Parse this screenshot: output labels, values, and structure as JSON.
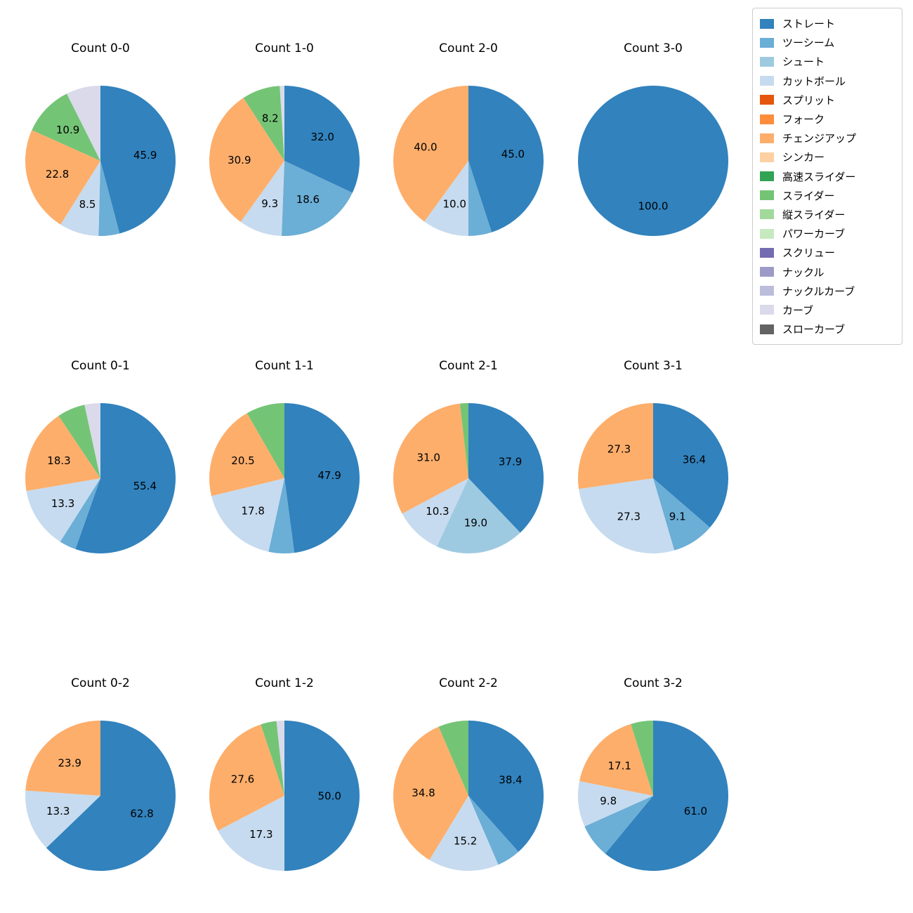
{
  "figure": {
    "background": "#ffffff"
  },
  "legend": {
    "items": [
      {
        "label": "ストレート",
        "color": "#3182bd"
      },
      {
        "label": "ツーシーム",
        "color": "#6baed6"
      },
      {
        "label": "シュート",
        "color": "#9ecae1"
      },
      {
        "label": "カットボール",
        "color": "#c6dbef"
      },
      {
        "label": "スプリット",
        "color": "#e6550d"
      },
      {
        "label": "フォーク",
        "color": "#fd8d3c"
      },
      {
        "label": "チェンジアップ",
        "color": "#fdae6b"
      },
      {
        "label": "シンカー",
        "color": "#fdd0a2"
      },
      {
        "label": "高速スライダー",
        "color": "#31a354"
      },
      {
        "label": "スライダー",
        "color": "#74c476"
      },
      {
        "label": "縦スライダー",
        "color": "#a1d99b"
      },
      {
        "label": "パワーカーブ",
        "color": "#c7e9c0"
      },
      {
        "label": "スクリュー",
        "color": "#756bb1"
      },
      {
        "label": "ナックル",
        "color": "#9e9ac8"
      },
      {
        "label": "ナックルカーブ",
        "color": "#bcbddc"
      },
      {
        "label": "カーブ",
        "color": "#dadaeb"
      },
      {
        "label": "スローカーブ",
        "color": "#636363"
      }
    ]
  },
  "chart_data": {
    "type": "pie",
    "layout": {
      "rows": 3,
      "cols": 4,
      "legend_position": "top-right"
    },
    "value_unit": "percent",
    "pie_direction": "clockwise-from-top",
    "charts": [
      {
        "title": "Count 0-0",
        "slices": [
          {
            "name": "ストレート",
            "value": 45.9,
            "label": "45.9"
          },
          {
            "name": "ツーシーム",
            "value": 4.5,
            "label": null
          },
          {
            "name": "カットボール",
            "value": 8.5,
            "label": "8.5"
          },
          {
            "name": "チェンジアップ",
            "value": 22.8,
            "label": "22.8"
          },
          {
            "name": "スライダー",
            "value": 10.9,
            "label": "10.9"
          },
          {
            "name": "カーブ",
            "value": 7.4,
            "label": null
          }
        ]
      },
      {
        "title": "Count 1-0",
        "slices": [
          {
            "name": "ストレート",
            "value": 32.0,
            "label": "32.0"
          },
          {
            "name": "ツーシーム",
            "value": 18.6,
            "label": "18.6"
          },
          {
            "name": "カットボール",
            "value": 9.3,
            "label": "9.3"
          },
          {
            "name": "チェンジアップ",
            "value": 30.9,
            "label": "30.9"
          },
          {
            "name": "スライダー",
            "value": 8.2,
            "label": "8.2"
          },
          {
            "name": "カーブ",
            "value": 1.0,
            "label": null
          }
        ]
      },
      {
        "title": "Count 2-0",
        "slices": [
          {
            "name": "ストレート",
            "value": 45.0,
            "label": "45.0"
          },
          {
            "name": "ツーシーム",
            "value": 5.0,
            "label": null
          },
          {
            "name": "カットボール",
            "value": 10.0,
            "label": "10.0"
          },
          {
            "name": "チェンジアップ",
            "value": 40.0,
            "label": "40.0"
          }
        ]
      },
      {
        "title": "Count 3-0",
        "slices": [
          {
            "name": "ストレート",
            "value": 100.0,
            "label": "100.0"
          }
        ]
      },
      {
        "title": "Count 0-1",
        "slices": [
          {
            "name": "ストレート",
            "value": 55.4,
            "label": "55.4"
          },
          {
            "name": "ツーシーム",
            "value": 3.6,
            "label": null
          },
          {
            "name": "カットボール",
            "value": 13.3,
            "label": "13.3"
          },
          {
            "name": "チェンジアップ",
            "value": 18.3,
            "label": "18.3"
          },
          {
            "name": "スライダー",
            "value": 6.0,
            "label": null
          },
          {
            "name": "カーブ",
            "value": 3.4,
            "label": null
          }
        ]
      },
      {
        "title": "Count 1-1",
        "slices": [
          {
            "name": "ストレート",
            "value": 47.9,
            "label": "47.9"
          },
          {
            "name": "ツーシーム",
            "value": 5.5,
            "label": null
          },
          {
            "name": "カットボール",
            "value": 17.8,
            "label": "17.8"
          },
          {
            "name": "チェンジアップ",
            "value": 20.5,
            "label": "20.5"
          },
          {
            "name": "スライダー",
            "value": 8.3,
            "label": null
          }
        ]
      },
      {
        "title": "Count 2-1",
        "slices": [
          {
            "name": "ストレート",
            "value": 37.9,
            "label": "37.9"
          },
          {
            "name": "シュート",
            "value": 19.0,
            "label": "19.0"
          },
          {
            "name": "カットボール",
            "value": 10.3,
            "label": "10.3"
          },
          {
            "name": "チェンジアップ",
            "value": 31.0,
            "label": "31.0"
          },
          {
            "name": "スライダー",
            "value": 1.8,
            "label": null
          }
        ]
      },
      {
        "title": "Count 3-1",
        "slices": [
          {
            "name": "ストレート",
            "value": 36.4,
            "label": "36.4"
          },
          {
            "name": "ツーシーム",
            "value": 9.1,
            "label": "9.1"
          },
          {
            "name": "カットボール",
            "value": 27.3,
            "label": "27.3"
          },
          {
            "name": "チェンジアップ",
            "value": 27.3,
            "label": "27.3"
          }
        ]
      },
      {
        "title": "Count 0-2",
        "slices": [
          {
            "name": "ストレート",
            "value": 62.8,
            "label": "62.8"
          },
          {
            "name": "カットボール",
            "value": 13.3,
            "label": "13.3"
          },
          {
            "name": "チェンジアップ",
            "value": 23.9,
            "label": "23.9"
          }
        ]
      },
      {
        "title": "Count 1-2",
        "slices": [
          {
            "name": "ストレート",
            "value": 50.0,
            "label": "50.0"
          },
          {
            "name": "カットボール",
            "value": 17.3,
            "label": "17.3"
          },
          {
            "name": "チェンジアップ",
            "value": 27.6,
            "label": "27.6"
          },
          {
            "name": "スライダー",
            "value": 3.4,
            "label": null
          },
          {
            "name": "カーブ",
            "value": 1.7,
            "label": null
          }
        ]
      },
      {
        "title": "Count 2-2",
        "slices": [
          {
            "name": "ストレート",
            "value": 38.4,
            "label": "38.4"
          },
          {
            "name": "ツーシーム",
            "value": 5.1,
            "label": null
          },
          {
            "name": "カットボール",
            "value": 15.2,
            "label": "15.2"
          },
          {
            "name": "チェンジアップ",
            "value": 34.8,
            "label": "34.8"
          },
          {
            "name": "スライダー",
            "value": 6.5,
            "label": null
          }
        ]
      },
      {
        "title": "Count 3-2",
        "slices": [
          {
            "name": "ストレート",
            "value": 61.0,
            "label": "61.0"
          },
          {
            "name": "ツーシーム",
            "value": 7.3,
            "label": null
          },
          {
            "name": "カットボール",
            "value": 9.8,
            "label": "9.8"
          },
          {
            "name": "チェンジアップ",
            "value": 17.1,
            "label": "17.1"
          },
          {
            "name": "スライダー",
            "value": 4.8,
            "label": null
          }
        ]
      }
    ]
  }
}
